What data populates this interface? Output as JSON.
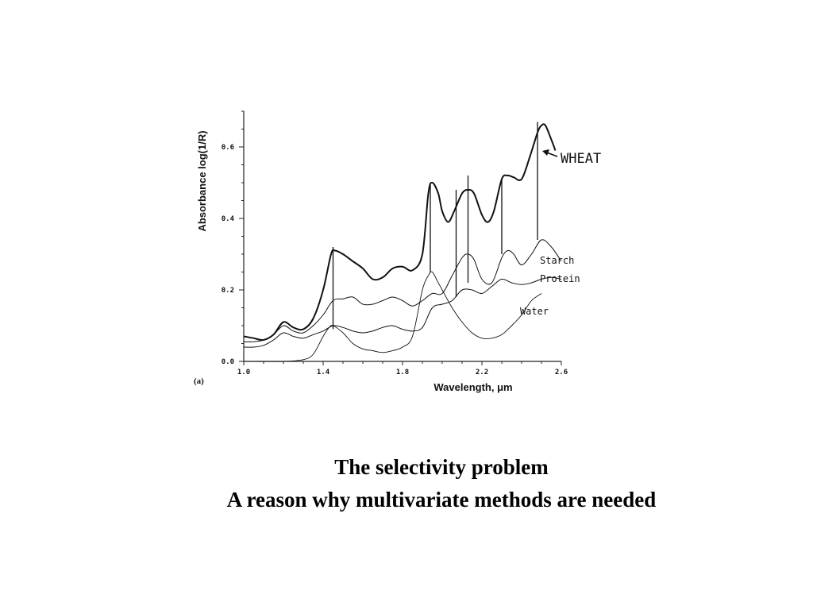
{
  "panel_label": "(a)",
  "caption": {
    "line1": "The selectivity problem",
    "line2": "A reason why multivariate methods are needed"
  },
  "chart_data": {
    "type": "line",
    "xlabel": "Wavelength, μm",
    "ylabel": "Absorbance log(1/R)",
    "xlim": [
      1.0,
      2.6
    ],
    "ylim": [
      0.0,
      0.7
    ],
    "x_ticks": [
      {
        "value": 1.0,
        "label": "1.0"
      },
      {
        "value": 1.4,
        "label": "1.4"
      },
      {
        "value": 1.8,
        "label": "1.8"
      },
      {
        "value": 2.2,
        "label": "2.2"
      },
      {
        "value": 2.6,
        "label": "2.6"
      }
    ],
    "y_ticks": [
      {
        "value": 0.0,
        "label": "0.0"
      },
      {
        "value": 0.2,
        "label": "0.2"
      },
      {
        "value": 0.4,
        "label": "0.4"
      },
      {
        "value": 0.6,
        "label": "0.6"
      }
    ],
    "grid": false,
    "series": [
      {
        "name": "WHEAT",
        "x": [
          1.0,
          1.05,
          1.1,
          1.15,
          1.2,
          1.25,
          1.3,
          1.35,
          1.4,
          1.44,
          1.46,
          1.5,
          1.55,
          1.6,
          1.65,
          1.7,
          1.75,
          1.8,
          1.85,
          1.9,
          1.93,
          1.95,
          1.98,
          2.0,
          2.03,
          2.06,
          2.1,
          2.13,
          2.16,
          2.2,
          2.23,
          2.26,
          2.3,
          2.33,
          2.36,
          2.4,
          2.44,
          2.48,
          2.5,
          2.52,
          2.55,
          2.57
        ],
        "y": [
          0.07,
          0.065,
          0.06,
          0.075,
          0.11,
          0.095,
          0.09,
          0.12,
          0.2,
          0.3,
          0.31,
          0.3,
          0.28,
          0.26,
          0.23,
          0.235,
          0.26,
          0.265,
          0.255,
          0.3,
          0.47,
          0.5,
          0.47,
          0.42,
          0.39,
          0.42,
          0.47,
          0.48,
          0.47,
          0.41,
          0.39,
          0.42,
          0.51,
          0.52,
          0.515,
          0.51,
          0.57,
          0.64,
          0.66,
          0.66,
          0.62,
          0.59
        ]
      },
      {
        "name": "Starch",
        "x": [
          1.0,
          1.05,
          1.1,
          1.15,
          1.2,
          1.25,
          1.3,
          1.35,
          1.4,
          1.45,
          1.5,
          1.55,
          1.6,
          1.65,
          1.7,
          1.75,
          1.8,
          1.85,
          1.9,
          1.95,
          2.0,
          2.05,
          2.1,
          2.13,
          2.16,
          2.2,
          2.25,
          2.3,
          2.33,
          2.36,
          2.4,
          2.45,
          2.5,
          2.55,
          2.6
        ],
        "y": [
          0.055,
          0.055,
          0.06,
          0.075,
          0.1,
          0.085,
          0.08,
          0.1,
          0.13,
          0.17,
          0.175,
          0.18,
          0.16,
          0.16,
          0.17,
          0.18,
          0.17,
          0.155,
          0.17,
          0.19,
          0.19,
          0.24,
          0.29,
          0.3,
          0.285,
          0.23,
          0.22,
          0.29,
          0.31,
          0.3,
          0.27,
          0.3,
          0.34,
          0.32,
          0.28
        ]
      },
      {
        "name": "Protein",
        "x": [
          1.0,
          1.05,
          1.1,
          1.15,
          1.2,
          1.25,
          1.3,
          1.35,
          1.4,
          1.45,
          1.5,
          1.55,
          1.6,
          1.65,
          1.7,
          1.75,
          1.8,
          1.85,
          1.9,
          1.95,
          2.0,
          2.05,
          2.1,
          2.15,
          2.2,
          2.25,
          2.3,
          2.35,
          2.4,
          2.45,
          2.5,
          2.55,
          2.6
        ],
        "y": [
          0.04,
          0.04,
          0.045,
          0.06,
          0.08,
          0.07,
          0.065,
          0.075,
          0.085,
          0.1,
          0.095,
          0.085,
          0.08,
          0.085,
          0.095,
          0.1,
          0.09,
          0.085,
          0.095,
          0.15,
          0.16,
          0.17,
          0.2,
          0.2,
          0.19,
          0.21,
          0.23,
          0.22,
          0.215,
          0.22,
          0.23,
          0.235,
          0.23
        ]
      },
      {
        "name": "Water",
        "x": [
          1.0,
          1.2,
          1.3,
          1.35,
          1.4,
          1.43,
          1.45,
          1.5,
          1.55,
          1.6,
          1.65,
          1.7,
          1.75,
          1.8,
          1.85,
          1.9,
          1.93,
          1.95,
          1.98,
          2.0,
          2.05,
          2.1,
          2.15,
          2.2,
          2.25,
          2.3,
          2.35,
          2.4,
          2.45,
          2.5
        ],
        "y": [
          0.0,
          0.0,
          0.005,
          0.02,
          0.07,
          0.095,
          0.1,
          0.08,
          0.05,
          0.035,
          0.03,
          0.025,
          0.03,
          0.04,
          0.07,
          0.2,
          0.24,
          0.25,
          0.22,
          0.2,
          0.15,
          0.11,
          0.08,
          0.065,
          0.065,
          0.075,
          0.1,
          0.13,
          0.17,
          0.19
        ]
      }
    ],
    "marker_lines": [
      {
        "x": 1.45,
        "y_top": 0.32,
        "y_bottom": 0.09
      },
      {
        "x": 1.94,
        "y_top": 0.5,
        "y_bottom": 0.25
      },
      {
        "x": 2.07,
        "y_top": 0.48,
        "y_bottom": 0.18
      },
      {
        "x": 2.13,
        "y_top": 0.52,
        "y_bottom": 0.22
      },
      {
        "x": 2.3,
        "y_top": 0.51,
        "y_bottom": 0.3
      },
      {
        "x": 2.48,
        "y_top": 0.67,
        "y_bottom": 0.34
      }
    ],
    "labels": {
      "wheat": "WHEAT",
      "starch": "Starch",
      "protein": "Protein",
      "water": "Water"
    }
  }
}
